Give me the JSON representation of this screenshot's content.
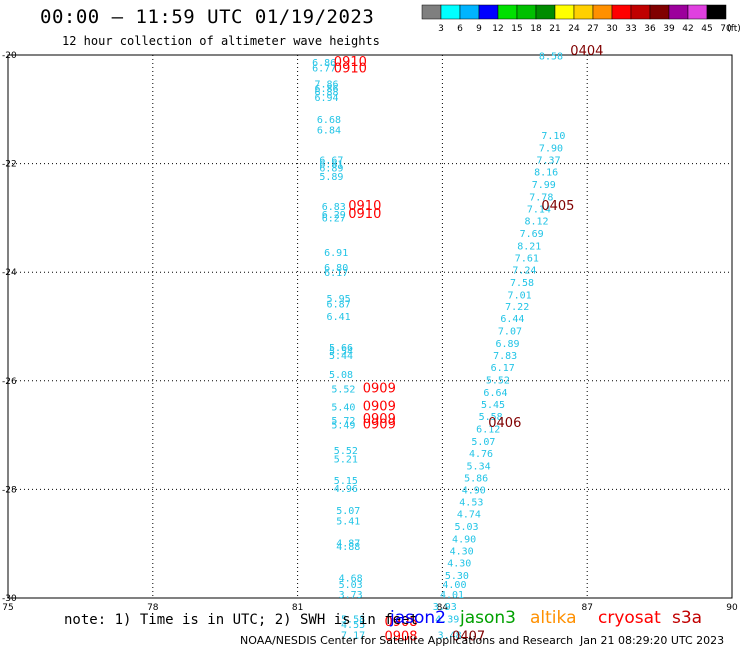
{
  "header": {
    "title": "00:00 – 11:59 UTC 01/19/2023",
    "subtitle": "12 hour collection of altimeter wave heights"
  },
  "colorbar": {
    "unit": "(ft)",
    "bins": [
      {
        "label": "3",
        "color": "#7f7f7f"
      },
      {
        "label": "6",
        "color": "#00ffff"
      },
      {
        "label": "9",
        "color": "#00b4ff"
      },
      {
        "label": "12",
        "color": "#0000ff"
      },
      {
        "label": "15",
        "color": "#00e000"
      },
      {
        "label": "18",
        "color": "#00c000"
      },
      {
        "label": "21",
        "color": "#008c00"
      },
      {
        "label": "24",
        "color": "#ffff00"
      },
      {
        "label": "27",
        "color": "#ffd000"
      },
      {
        "label": "30",
        "color": "#ff9000"
      },
      {
        "label": "33",
        "color": "#ff0000"
      },
      {
        "label": "36",
        "color": "#c00000"
      },
      {
        "label": "39",
        "color": "#800000"
      },
      {
        "label": "42",
        "color": "#9c009c"
      },
      {
        "label": "45",
        "color": "#e040e0"
      },
      {
        "label": "70",
        "color": "#000000"
      }
    ]
  },
  "footer": {
    "note": "note: 1) Time is in UTC; 2) SWH is in feet",
    "credit": "NOAA/NESDIS Center for Satellite Applications and Research",
    "stamp": "Jan 21 08:29:20 UTC 2023",
    "satellites": [
      {
        "name": "jason2",
        "color": "#0000ff"
      },
      {
        "name": "jason3",
        "color": "#00a000"
      },
      {
        "name": "altika",
        "color": "#ff9000"
      },
      {
        "name": "cryosat",
        "color": "#ff0000"
      },
      {
        "name": "s3a",
        "color": "#c00000"
      }
    ]
  },
  "chart_data": {
    "type": "scatter",
    "xlim": [
      75,
      90
    ],
    "ylim": [
      -30,
      -20
    ],
    "xticks": [
      75,
      78,
      81,
      84,
      87,
      90
    ],
    "yticks": [
      -20,
      -22,
      -24,
      -26,
      -28,
      -30
    ],
    "grid": true,
    "series": [
      {
        "color": "#22c4e6",
        "points": [
          {
            "x": 81.3,
            "y": -20.2,
            "label": "6.86"
          },
          {
            "x": 81.3,
            "y": -20.3,
            "label": "6.77"
          },
          {
            "x": 81.35,
            "y": -20.6,
            "label": "7.86"
          },
          {
            "x": 81.35,
            "y": -20.68,
            "label": "6.86"
          },
          {
            "x": 81.35,
            "y": -20.75,
            "label": "6.88"
          },
          {
            "x": 81.35,
            "y": -20.85,
            "label": "6.94"
          },
          {
            "x": 81.4,
            "y": -21.25,
            "label": "6.68"
          },
          {
            "x": 81.4,
            "y": -21.45,
            "label": "6.84"
          },
          {
            "x": 81.45,
            "y": -22.0,
            "label": "6.67"
          },
          {
            "x": 81.45,
            "y": -22.07,
            "label": "6.81"
          },
          {
            "x": 81.45,
            "y": -22.15,
            "label": "6.89"
          },
          {
            "x": 81.45,
            "y": -22.3,
            "label": "5.89"
          },
          {
            "x": 81.5,
            "y": -22.85,
            "label": "6.83"
          },
          {
            "x": 81.5,
            "y": -23.0,
            "label": "6.29"
          },
          {
            "x": 81.5,
            "y": -23.07,
            "label": "6.27"
          },
          {
            "x": 81.55,
            "y": -23.7,
            "label": "6.91"
          },
          {
            "x": 81.55,
            "y": -23.98,
            "label": "6.80"
          },
          {
            "x": 81.55,
            "y": -24.07,
            "label": "6.17"
          },
          {
            "x": 81.6,
            "y": -24.55,
            "label": "5.95"
          },
          {
            "x": 81.6,
            "y": -24.65,
            "label": "6.87"
          },
          {
            "x": 81.6,
            "y": -24.88,
            "label": "6.41"
          },
          {
            "x": 81.65,
            "y": -25.45,
            "label": "5.66"
          },
          {
            "x": 81.65,
            "y": -25.52,
            "label": "5.54"
          },
          {
            "x": 81.65,
            "y": -25.6,
            "label": "5.44"
          },
          {
            "x": 81.65,
            "y": -25.95,
            "label": "5.08"
          },
          {
            "x": 81.7,
            "y": -26.22,
            "label": "5.52"
          },
          {
            "x": 81.7,
            "y": -26.55,
            "label": "5.40"
          },
          {
            "x": 81.7,
            "y": -26.8,
            "label": "5.72"
          },
          {
            "x": 81.7,
            "y": -26.88,
            "label": "5.49"
          },
          {
            "x": 81.75,
            "y": -27.35,
            "label": "5.52"
          },
          {
            "x": 81.75,
            "y": -27.5,
            "label": "5.21"
          },
          {
            "x": 81.75,
            "y": -27.9,
            "label": "5.15"
          },
          {
            "x": 81.75,
            "y": -28.05,
            "label": "4.96"
          },
          {
            "x": 81.8,
            "y": -28.45,
            "label": "5.07"
          },
          {
            "x": 81.8,
            "y": -28.65,
            "label": "5.41"
          },
          {
            "x": 81.8,
            "y": -29.05,
            "label": "4.87"
          },
          {
            "x": 81.8,
            "y": -29.12,
            "label": "4.88"
          },
          {
            "x": 81.85,
            "y": -29.7,
            "label": "4.68"
          },
          {
            "x": 81.85,
            "y": -29.82,
            "label": "5.03"
          },
          {
            "x": 81.85,
            "y": -30.0,
            "label": "3.73"
          },
          {
            "x": 81.9,
            "y": -30.45,
            "label": "5.58"
          },
          {
            "x": 81.9,
            "y": -30.55,
            "label": "4.55"
          },
          {
            "x": 81.9,
            "y": -30.75,
            "label": "7.17"
          },
          {
            "x": 83.9,
            "y": -30.75,
            "label": "3.48"
          },
          {
            "x": 83.85,
            "y": -30.45,
            "label": "4.39"
          },
          {
            "x": 83.8,
            "y": -30.22,
            "label": "3.93"
          },
          {
            "x": 83.95,
            "y": -30.0,
            "label": "4.01"
          },
          {
            "x": 84.0,
            "y": -29.82,
            "label": "4.00"
          },
          {
            "x": 84.05,
            "y": -29.65,
            "label": "5.30"
          },
          {
            "x": 84.1,
            "y": -29.42,
            "label": "4.30"
          },
          {
            "x": 84.15,
            "y": -29.2,
            "label": "4.30"
          },
          {
            "x": 84.2,
            "y": -28.98,
            "label": "4.90"
          },
          {
            "x": 84.25,
            "y": -28.75,
            "label": "5.03"
          },
          {
            "x": 84.3,
            "y": -28.52,
            "label": "4.74"
          },
          {
            "x": 84.35,
            "y": -28.3,
            "label": "4.53"
          },
          {
            "x": 84.4,
            "y": -28.08,
            "label": "4.90"
          },
          {
            "x": 84.45,
            "y": -27.85,
            "label": "5.86"
          },
          {
            "x": 84.5,
            "y": -27.63,
            "label": "5.34"
          },
          {
            "x": 84.55,
            "y": -27.4,
            "label": "4.76"
          },
          {
            "x": 84.6,
            "y": -27.18,
            "label": "5.07"
          },
          {
            "x": 84.7,
            "y": -26.95,
            "label": "6.12"
          },
          {
            "x": 84.75,
            "y": -26.72,
            "label": "5.58"
          },
          {
            "x": 84.8,
            "y": -26.5,
            "label": "5.45"
          },
          {
            "x": 84.85,
            "y": -26.28,
            "label": "6.64"
          },
          {
            "x": 84.9,
            "y": -26.05,
            "label": "5.52"
          },
          {
            "x": 85.0,
            "y": -25.82,
            "label": "6.17"
          },
          {
            "x": 85.05,
            "y": -25.6,
            "label": "7.83"
          },
          {
            "x": 85.1,
            "y": -25.38,
            "label": "6.89"
          },
          {
            "x": 85.15,
            "y": -25.15,
            "label": "7.07"
          },
          {
            "x": 85.2,
            "y": -24.92,
            "label": "6.44"
          },
          {
            "x": 85.3,
            "y": -24.7,
            "label": "7.22"
          },
          {
            "x": 85.35,
            "y": -24.48,
            "label": "7.01"
          },
          {
            "x": 85.4,
            "y": -24.25,
            "label": "7.58"
          },
          {
            "x": 85.45,
            "y": -24.02,
            "label": "7.24"
          },
          {
            "x": 85.5,
            "y": -23.8,
            "label": "7.61"
          },
          {
            "x": 85.55,
            "y": -23.58,
            "label": "8.21"
          },
          {
            "x": 85.6,
            "y": -23.35,
            "label": "7.69"
          },
          {
            "x": 85.7,
            "y": -23.12,
            "label": "8.12"
          },
          {
            "x": 85.75,
            "y": -22.9,
            "label": "7.14"
          },
          {
            "x": 85.8,
            "y": -22.68,
            "label": "7.78"
          },
          {
            "x": 85.85,
            "y": -22.45,
            "label": "7.99"
          },
          {
            "x": 85.9,
            "y": -22.22,
            "label": "8.16"
          },
          {
            "x": 85.95,
            "y": -22.0,
            "label": "7.37"
          },
          {
            "x": 86.0,
            "y": -21.78,
            "label": "7.90"
          },
          {
            "x": 86.05,
            "y": -21.55,
            "label": "7.10"
          },
          {
            "x": 86.0,
            "y": -20.08,
            "label": "8.58"
          }
        ]
      },
      {
        "color": "#ff0000",
        "points": [
          {
            "x": 81.75,
            "y": -20.2,
            "label": "0910"
          },
          {
            "x": 81.75,
            "y": -20.32,
            "label": "0910"
          },
          {
            "x": 82.05,
            "y": -22.85,
            "label": "0910"
          },
          {
            "x": 82.05,
            "y": -23.0,
            "label": "0910"
          },
          {
            "x": 82.35,
            "y": -26.22,
            "label": "0909"
          },
          {
            "x": 82.35,
            "y": -26.55,
            "label": "0909"
          },
          {
            "x": 82.35,
            "y": -26.78,
            "label": "0909"
          },
          {
            "x": 82.35,
            "y": -26.88,
            "label": "0909"
          },
          {
            "x": 82.8,
            "y": -30.52,
            "label": "0908"
          },
          {
            "x": 82.8,
            "y": -30.78,
            "label": "0908"
          }
        ]
      },
      {
        "color": "#800000",
        "points": [
          {
            "x": 86.65,
            "y": -20.0,
            "label": "0404"
          },
          {
            "x": 86.05,
            "y": -22.85,
            "label": "0405"
          },
          {
            "x": 84.95,
            "y": -26.85,
            "label": "0406"
          },
          {
            "x": 84.2,
            "y": -30.78,
            "label": "0407"
          }
        ]
      }
    ]
  }
}
